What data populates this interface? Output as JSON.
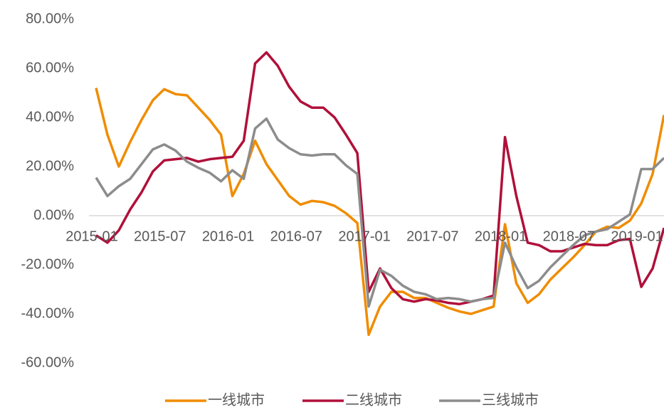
{
  "chart_data": {
    "type": "line",
    "categories": [
      "2015-01",
      null,
      null,
      null,
      null,
      null,
      "2015-07",
      null,
      null,
      null,
      null,
      null,
      "2016-01",
      null,
      null,
      null,
      null,
      null,
      "2016-07",
      null,
      null,
      null,
      null,
      null,
      "2017-01",
      null,
      null,
      null,
      null,
      null,
      "2017-07",
      null,
      null,
      null,
      null,
      null,
      "2018-01",
      null,
      null,
      null,
      null,
      null,
      "2018-07",
      null,
      null,
      null,
      null,
      null,
      "2019-01",
      null,
      null
    ],
    "series": [
      {
        "name": "一线城市",
        "color": "#f08c00",
        "values": [
          52,
          33,
          20,
          30,
          39,
          47,
          51.5,
          49.5,
          49,
          44,
          39,
          33,
          8,
          17,
          30.5,
          21,
          14.5,
          8,
          4.5,
          6,
          5.5,
          4,
          1,
          -3,
          -48.5,
          -37,
          -31,
          -31,
          -33.5,
          -33.5,
          -35.5,
          -37.5,
          -39,
          -40,
          -38.5,
          -37,
          -3.5,
          -27.5,
          -35.5,
          -32,
          -26,
          -21.5,
          -17,
          -12,
          -6.5,
          -4.5,
          -5,
          -2,
          5,
          17,
          41
        ]
      },
      {
        "name": "二线城市",
        "color": "#b0103a",
        "values": [
          -8,
          -11,
          -6,
          2.5,
          9.5,
          18,
          22.5,
          23,
          23.5,
          22,
          23,
          23.5,
          24,
          30.5,
          62,
          66.5,
          61,
          52.5,
          46.5,
          44,
          44,
          40,
          33,
          25.5,
          -31,
          -21.5,
          -29.5,
          -34,
          -35,
          -34,
          -34.5,
          -35.5,
          -36,
          -35,
          -34,
          -32.5,
          32,
          8,
          -11,
          -12,
          -14.5,
          -14.5,
          -13,
          -11.5,
          -12,
          -12,
          -10,
          -9.5,
          -29,
          -21.5,
          -5
        ]
      },
      {
        "name": "三线城市",
        "color": "#8c8c8c",
        "values": [
          15.5,
          8,
          12,
          15,
          21,
          27,
          29,
          26.5,
          22,
          19.5,
          17.5,
          14,
          18.5,
          15,
          35.5,
          39.5,
          31,
          27.5,
          25,
          24.5,
          25,
          25,
          20.5,
          17,
          -37,
          -22,
          -24.5,
          -28.5,
          -31,
          -32,
          -34,
          -33.5,
          -34,
          -35,
          -34,
          -33.5,
          -11,
          -21,
          -29.5,
          -26.5,
          -21,
          -16.5,
          -12,
          -8,
          -6.5,
          -5.5,
          -2.5,
          0.5,
          19,
          19,
          23.5
        ]
      }
    ],
    "ylim": [
      -70,
      85
    ],
    "yticks": [
      {
        "value": 80,
        "label": "80.00%"
      },
      {
        "value": 60,
        "label": "60.00%"
      },
      {
        "value": 40,
        "label": "40.00%"
      },
      {
        "value": 20,
        "label": "20.00%"
      },
      {
        "value": 0,
        "label": "0.00%"
      },
      {
        "value": -20,
        "label": "-20.00%"
      },
      {
        "value": -40,
        "label": "-40.00%"
      },
      {
        "value": -60,
        "label": "-60.00%"
      }
    ],
    "legend": "bottom"
  }
}
